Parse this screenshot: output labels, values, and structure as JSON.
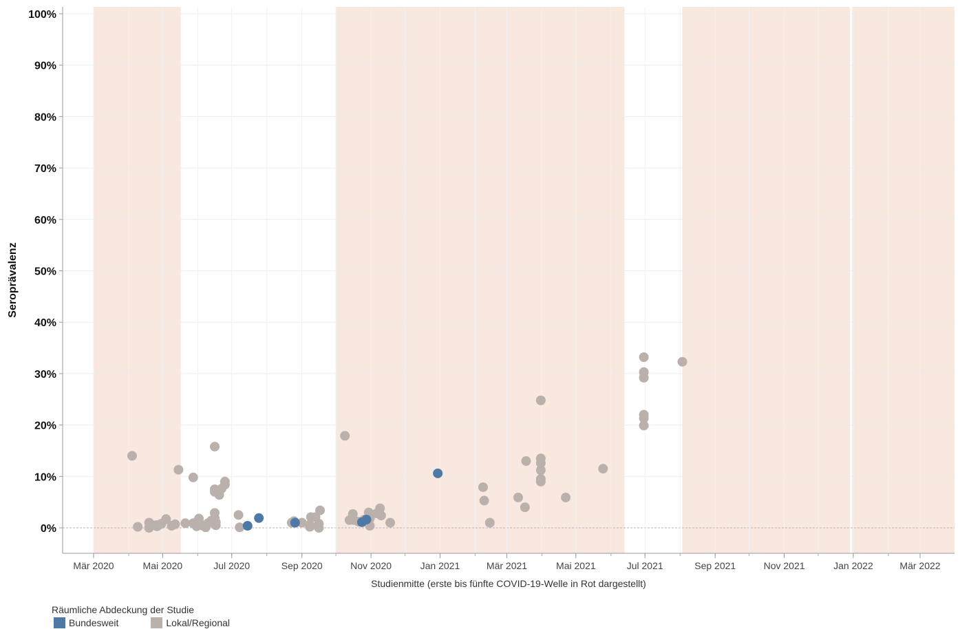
{
  "chart_data": {
    "type": "scatter",
    "title": "",
    "xlabel": "Studienmitte (erste bis fünfte COVID-19-Welle in Rot dargestellt)",
    "ylabel": "Seroprävalenz",
    "ylim": [
      -5,
      100
    ],
    "xlim": [
      "2020-02-19",
      "2022-04-10"
    ],
    "y_ticks": [
      0,
      10,
      20,
      30,
      40,
      50,
      60,
      70,
      80,
      90,
      100
    ],
    "y_tick_labels": [
      "0%",
      "10%",
      "20%",
      "30%",
      "40%",
      "50%",
      "60%",
      "70%",
      "80%",
      "90%",
      "100%"
    ],
    "x_ticks": [
      "2020-03-01",
      "2020-05-01",
      "2020-07-01",
      "2020-09-01",
      "2020-11-01",
      "2021-01-01",
      "2021-03-01",
      "2021-05-01",
      "2021-07-01",
      "2021-09-01",
      "2021-11-01",
      "2022-01-01",
      "2022-03-01"
    ],
    "x_tick_labels": [
      "Mär 2020",
      "Mai 2020",
      "Jul 2020",
      "Sep 2020",
      "Nov 2020",
      "Jan 2021",
      "Mär 2021",
      "Mai 2021",
      "Jul 2021",
      "Sep 2021",
      "Nov 2021",
      "Jan 2022",
      "Mär 2022"
    ],
    "grid": true,
    "legend_position": "bottom-left",
    "wave_bands": [
      {
        "start": "2020-03-01",
        "end": "2020-05-17"
      },
      {
        "start": "2020-10-01",
        "end": "2021-06-13"
      },
      {
        "start": "2021-08-03",
        "end": "2021-12-29"
      },
      {
        "start": "2021-12-31",
        "end": "2022-04-10"
      }
    ],
    "legend": {
      "title": "Räumliche Abdeckung der Studie",
      "entries": [
        {
          "name": "Bundesweit",
          "color": "#4e79a7"
        },
        {
          "name": "Lokal/Regional",
          "color": "#bab0ac"
        }
      ]
    },
    "series": [
      {
        "name": "Lokal/Regional",
        "color": "#bab0ac",
        "points": [
          [
            "2020-04-04",
            14.0
          ],
          [
            "2020-04-09",
            0.2
          ],
          [
            "2020-04-19",
            1.0
          ],
          [
            "2020-04-19",
            0.0
          ],
          [
            "2020-04-20",
            0.8
          ],
          [
            "2020-04-25",
            0.5
          ],
          [
            "2020-04-26",
            0.3
          ],
          [
            "2020-04-28",
            0.6
          ],
          [
            "2020-04-30",
            0.8
          ],
          [
            "2020-05-04",
            1.7
          ],
          [
            "2020-05-09",
            0.4
          ],
          [
            "2020-05-12",
            0.7
          ],
          [
            "2020-05-15",
            11.3
          ],
          [
            "2020-05-21",
            0.9
          ],
          [
            "2020-05-28",
            9.8
          ],
          [
            "2020-05-28",
            0.9
          ],
          [
            "2020-05-31",
            0.3
          ],
          [
            "2020-06-02",
            1.8
          ],
          [
            "2020-06-02",
            1.2
          ],
          [
            "2020-06-04",
            0.5
          ],
          [
            "2020-06-08",
            0.1
          ],
          [
            "2020-06-10",
            0.9
          ],
          [
            "2020-06-13",
            1.4
          ],
          [
            "2020-06-16",
            15.8
          ],
          [
            "2020-06-16",
            7.5
          ],
          [
            "2020-06-16",
            7.0
          ],
          [
            "2020-06-16",
            2.9
          ],
          [
            "2020-06-16",
            1.9
          ],
          [
            "2020-06-17",
            1.1
          ],
          [
            "2020-06-17",
            0.5
          ],
          [
            "2020-06-20",
            6.4
          ],
          [
            "2020-06-22",
            7.6
          ],
          [
            "2020-06-25",
            9.0
          ],
          [
            "2020-06-25",
            8.4
          ],
          [
            "2020-07-07",
            2.5
          ],
          [
            "2020-07-08",
            0.1
          ],
          [
            "2020-08-23",
            1.0
          ],
          [
            "2020-08-25",
            1.3
          ],
          [
            "2020-09-01",
            1.0
          ],
          [
            "2020-09-08",
            0.6
          ],
          [
            "2020-09-08",
            0.2
          ],
          [
            "2020-09-09",
            2.1
          ],
          [
            "2020-09-13",
            2.1
          ],
          [
            "2020-09-16",
            0.8
          ],
          [
            "2020-09-16",
            0.0
          ],
          [
            "2020-09-17",
            3.4
          ],
          [
            "2020-10-09",
            17.9
          ],
          [
            "2020-10-13",
            1.5
          ],
          [
            "2020-10-16",
            2.7
          ],
          [
            "2020-10-17",
            1.5
          ],
          [
            "2020-10-21",
            1.2
          ],
          [
            "2020-10-26",
            1.6
          ],
          [
            "2020-10-30",
            3.0
          ],
          [
            "2020-10-31",
            1.8
          ],
          [
            "2020-10-31",
            0.4
          ],
          [
            "2020-11-06",
            2.8
          ],
          [
            "2020-11-09",
            3.8
          ],
          [
            "2020-11-10",
            2.4
          ],
          [
            "2020-11-18",
            1.0
          ],
          [
            "2021-02-08",
            7.9
          ],
          [
            "2021-02-09",
            5.3
          ],
          [
            "2021-02-14",
            1.0
          ],
          [
            "2021-03-11",
            5.9
          ],
          [
            "2021-03-17",
            4.0
          ],
          [
            "2021-03-18",
            13.0
          ],
          [
            "2021-03-31",
            24.8
          ],
          [
            "2021-03-31",
            13.5
          ],
          [
            "2021-03-31",
            12.6
          ],
          [
            "2021-03-31",
            11.2
          ],
          [
            "2021-03-31",
            9.5
          ],
          [
            "2021-03-31",
            9.0
          ],
          [
            "2021-04-22",
            5.9
          ],
          [
            "2021-05-25",
            11.5
          ],
          [
            "2021-06-30",
            33.2
          ],
          [
            "2021-06-30",
            30.3
          ],
          [
            "2021-06-30",
            29.2
          ],
          [
            "2021-06-30",
            22.0
          ],
          [
            "2021-06-30",
            21.3
          ],
          [
            "2021-06-30",
            19.9
          ],
          [
            "2021-08-03",
            32.3
          ]
        ]
      },
      {
        "name": "Bundesweit",
        "color": "#4e79a7",
        "points": [
          [
            "2020-07-15",
            0.4
          ],
          [
            "2020-07-25",
            1.9
          ],
          [
            "2020-08-26",
            1.0
          ],
          [
            "2020-10-24",
            1.1
          ],
          [
            "2020-10-28",
            1.6
          ],
          [
            "2020-12-30",
            10.6
          ]
        ]
      }
    ]
  }
}
